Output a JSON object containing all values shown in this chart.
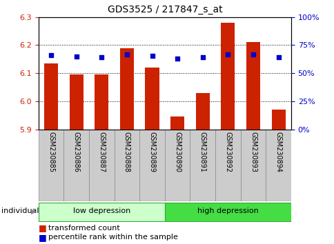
{
  "title": "GDS3525 / 217847_s_at",
  "samples": [
    "GSM230885",
    "GSM230886",
    "GSM230887",
    "GSM230888",
    "GSM230889",
    "GSM230890",
    "GSM230891",
    "GSM230892",
    "GSM230893",
    "GSM230894"
  ],
  "bar_values": [
    6.135,
    6.095,
    6.095,
    6.19,
    6.12,
    5.945,
    6.03,
    6.28,
    6.21,
    5.97
  ],
  "dot_values": [
    6.165,
    6.16,
    6.158,
    6.168,
    6.163,
    6.152,
    6.157,
    6.168,
    6.168,
    6.158
  ],
  "ymin": 5.9,
  "ymax": 6.3,
  "yticks": [
    5.9,
    6.0,
    6.1,
    6.2,
    6.3
  ],
  "right_yticks": [
    0,
    25,
    50,
    75,
    100
  ],
  "right_yticklabels": [
    "0%",
    "25%",
    "50%",
    "75%",
    "100%"
  ],
  "bar_color": "#cc2200",
  "dot_color": "#0000cc",
  "bar_bottom": 5.9,
  "group1_label": "low depression",
  "group2_label": "high depression",
  "group1_indices": [
    0,
    1,
    2,
    3,
    4
  ],
  "group2_indices": [
    5,
    6,
    7,
    8,
    9
  ],
  "group1_color": "#ccffcc",
  "group2_color": "#44dd44",
  "group_border_color": "#33aa33",
  "individual_label": "individual",
  "legend_items": [
    "transformed count",
    "percentile rank within the sample"
  ],
  "legend_colors": [
    "#cc2200",
    "#0000cc"
  ],
  "tick_color_left": "#cc2200",
  "tick_color_right": "#0000cc",
  "xtick_bg_color": "#cccccc",
  "xtick_border_color": "#888888"
}
